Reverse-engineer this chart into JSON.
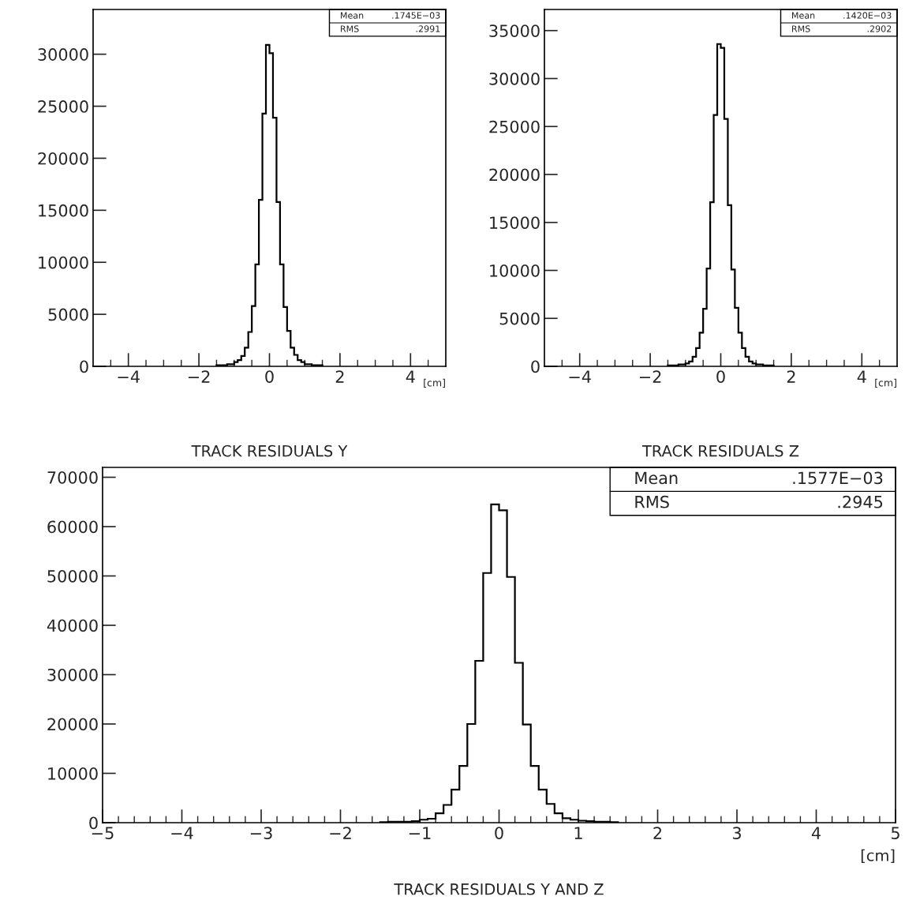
{
  "chart_data": [
    {
      "type": "histogram",
      "title": "TRACK RESIDUALS Y",
      "xlabel": "[cm]",
      "annotations": [
        "Mean",
        ".1745E−03",
        "RMS",
        ".2991"
      ],
      "bins": [
        -1.5,
        -1.4,
        -1.3,
        -1.2,
        -1.1,
        -1.0,
        -0.9,
        -0.8,
        -0.7,
        -0.6,
        -0.5,
        -0.4,
        -0.3,
        -0.2,
        -0.1,
        0,
        0.1,
        0.2,
        0.3,
        0.4,
        0.5,
        0.6,
        0.7,
        0.8,
        0.9,
        1.0,
        1.1,
        1.2,
        1.3,
        1.4,
        1.5
      ],
      "values": [
        100,
        100,
        100,
        200,
        200,
        400,
        600,
        1000,
        1800,
        3300,
        5800,
        9800,
        16000,
        24300,
        30900,
        30100,
        23900,
        15800,
        9800,
        5700,
        3400,
        1800,
        1100,
        600,
        400,
        200,
        200,
        100,
        100,
        100
      ],
      "color": "#000000",
      "xlim": [
        -5,
        5
      ],
      "xticks": [
        {
          "value": -4.5,
          "label": null
        },
        -4,
        {
          "value": -3.5,
          "label": null
        },
        {
          "value": -3,
          "label": null
        },
        {
          "value": -2.5,
          "label": null
        },
        -2,
        {
          "value": -1.5,
          "label": null
        },
        {
          "value": -1,
          "label": null
        },
        {
          "value": -0.5,
          "label": null
        },
        0,
        {
          "value": 0.5,
          "label": null
        },
        {
          "value": 1,
          "label": null
        },
        {
          "value": 1.5,
          "label": null
        },
        2,
        {
          "value": 2.5,
          "label": null
        },
        {
          "value": 3,
          "label": null
        },
        {
          "value": 3.5,
          "label": null
        },
        4,
        {
          "value": 4.5,
          "label": null
        }
      ],
      "ylim": [
        0,
        34300
      ],
      "yticks": [
        0,
        5000,
        10000,
        15000,
        20000,
        25000,
        30000
      ],
      "grid": false
    },
    {
      "type": "histogram",
      "title": "TRACK RESIDUALS Z",
      "xlabel": "[cm]",
      "annotations": [
        "Mean",
        ".1420E−03",
        "RMS",
        ".2902"
      ],
      "bins": [
        -1.5,
        -1.4,
        -1.3,
        -1.2,
        -1.1,
        -1.0,
        -0.9,
        -0.8,
        -0.7,
        -0.6,
        -0.5,
        -0.4,
        -0.3,
        -0.2,
        -0.1,
        0,
        0.1,
        0.2,
        0.3,
        0.4,
        0.5,
        0.6,
        0.7,
        0.8,
        0.9,
        1.0,
        1.1,
        1.2,
        1.3,
        1.4,
        1.5
      ],
      "values": [
        100,
        100,
        100,
        200,
        200,
        300,
        500,
        1000,
        1900,
        3500,
        6000,
        10200,
        17100,
        26200,
        33600,
        33200,
        25800,
        16800,
        10100,
        6100,
        3500,
        1900,
        1000,
        500,
        300,
        200,
        200,
        100,
        100,
        100
      ],
      "color": "#000000",
      "xlim": [
        -5,
        5
      ],
      "xticks": [
        {
          "value": -4.5,
          "label": null
        },
        -4,
        {
          "value": -3.5,
          "label": null
        },
        {
          "value": -3,
          "label": null
        },
        {
          "value": -2.5,
          "label": null
        },
        -2,
        {
          "value": -1.5,
          "label": null
        },
        {
          "value": -1,
          "label": null
        },
        {
          "value": -0.5,
          "label": null
        },
        0,
        {
          "value": 0.5,
          "label": null
        },
        {
          "value": 1,
          "label": null
        },
        {
          "value": 1.5,
          "label": null
        },
        2,
        {
          "value": 2.5,
          "label": null
        },
        {
          "value": 3,
          "label": null
        },
        {
          "value": 3.5,
          "label": null
        },
        4,
        {
          "value": 4.5,
          "label": null
        }
      ],
      "ylim": [
        0,
        37200
      ],
      "yticks": [
        0,
        5000,
        10000,
        15000,
        20000,
        25000,
        30000,
        35000
      ],
      "grid": false
    },
    {
      "type": "histogram",
      "title": "TRACK RESIDUALS Y AND Z",
      "xlabel": "[cm]",
      "annotations": [
        "Mean",
        ".1577E−03",
        "RMS",
        ".2945"
      ],
      "bins": [
        -1.5,
        -1.4,
        -1.3,
        -1.2,
        -1.1,
        -1.0,
        -0.9,
        -0.8,
        -0.7,
        -0.6,
        -0.5,
        -0.4,
        -0.3,
        -0.2,
        -0.1,
        0,
        0.1,
        0.2,
        0.3,
        0.4,
        0.5,
        0.6,
        0.7,
        0.8,
        0.9,
        1.0,
        1.1,
        1.2,
        1.3,
        1.4,
        1.5
      ],
      "values": [
        100,
        200,
        200,
        200,
        300,
        600,
        800,
        1900,
        3600,
        6700,
        11500,
        20000,
        32800,
        50600,
        64500,
        63300,
        49800,
        32400,
        19900,
        11500,
        6700,
        3800,
        1900,
        900,
        600,
        400,
        300,
        200,
        200,
        100
      ],
      "color": "#000000",
      "xlim": [
        -5,
        5
      ],
      "xticks": [
        -5,
        {
          "value": -4.8,
          "label": null
        },
        {
          "value": -4.6,
          "label": null
        },
        {
          "value": -4.4,
          "label": null
        },
        {
          "value": -4.2,
          "label": null
        },
        -4,
        {
          "value": -3.8,
          "label": null
        },
        {
          "value": -3.6,
          "label": null
        },
        {
          "value": -3.4,
          "label": null
        },
        {
          "value": -3.2,
          "label": null
        },
        -3,
        {
          "value": -2.8,
          "label": null
        },
        {
          "value": -2.6,
          "label": null
        },
        {
          "value": -2.4,
          "label": null
        },
        {
          "value": -2.2,
          "label": null
        },
        -2,
        {
          "value": -1.8,
          "label": null
        },
        {
          "value": -1.6,
          "label": null
        },
        {
          "value": -1.4,
          "label": null
        },
        {
          "value": -1.2,
          "label": null
        },
        -1,
        {
          "value": -0.8,
          "label": null
        },
        {
          "value": -0.6,
          "label": null
        },
        {
          "value": -0.4,
          "label": null
        },
        {
          "value": -0.2,
          "label": null
        },
        0,
        {
          "value": 0.2,
          "label": null
        },
        {
          "value": 0.4,
          "label": null
        },
        {
          "value": 0.6,
          "label": null
        },
        {
          "value": 0.8,
          "label": null
        },
        1,
        {
          "value": 1.2,
          "label": null
        },
        {
          "value": 1.4,
          "label": null
        },
        {
          "value": 1.6,
          "label": null
        },
        {
          "value": 1.8,
          "label": null
        },
        2,
        {
          "value": 2.2,
          "label": null
        },
        {
          "value": 2.4,
          "label": null
        },
        {
          "value": 2.6,
          "label": null
        },
        {
          "value": 2.8,
          "label": null
        },
        3,
        {
          "value": 3.2,
          "label": null
        },
        {
          "value": 3.4,
          "label": null
        },
        {
          "value": 3.6,
          "label": null
        },
        {
          "value": 3.8,
          "label": null
        },
        4,
        {
          "value": 4.2,
          "label": null
        },
        {
          "value": 4.4,
          "label": null
        },
        {
          "value": 4.6,
          "label": null
        },
        {
          "value": 4.8,
          "label": null
        },
        5
      ],
      "ylim": [
        0,
        72000
      ],
      "yticks": [
        0,
        10000,
        20000,
        30000,
        40000,
        50000,
        60000,
        70000
      ],
      "grid": false
    }
  ]
}
